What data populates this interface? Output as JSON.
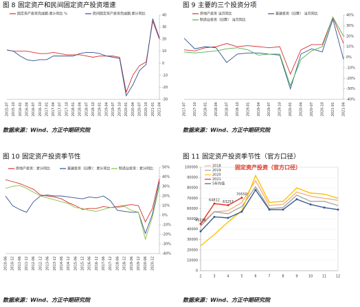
{
  "chart_data": [
    {
      "type": "line",
      "figure": "图 8",
      "title": "固定资产和民间固定资产投资增速",
      "source": "数据来源：Wind、方正中期研究院",
      "categories": [
        "2015-07",
        "2015-10",
        "2016-01",
        "2016-04",
        "2016-07",
        "2016-10",
        "2017-01",
        "2017-04",
        "2017-07",
        "2017-10",
        "2018-01",
        "2018-04",
        "2018-07",
        "2018-10",
        "2019-01",
        "2019-04",
        "2019-07",
        "2019-10",
        "2020-01",
        "2020-04",
        "2020-07",
        "2020-10",
        "2021-01",
        "2021-04"
      ],
      "series": [
        {
          "name": "固定资产投资完成额:累计同比 %",
          "color": "#d62d2d",
          "values": [
            11,
            10,
            10,
            10,
            9,
            8,
            8,
            9,
            8,
            7,
            7,
            7,
            6,
            5,
            6,
            6,
            6,
            5,
            -24,
            -10,
            -2,
            1,
            35,
            20
          ]
        },
        {
          "name": "民间固定资产投资完成额:累计同比",
          "color": "#2f4f8f",
          "values": [
            11,
            10,
            6,
            3,
            2,
            3,
            3,
            6,
            6,
            6,
            6,
            8,
            9,
            9,
            8,
            6,
            5,
            4,
            -27,
            -18,
            -6,
            -1,
            37,
            21
          ]
        }
      ],
      "ylim": [
        -30,
        40
      ],
      "yticks": [
        40,
        30,
        20,
        10,
        0,
        -10,
        -20,
        -30
      ]
    },
    {
      "type": "line",
      "figure": "图 9",
      "title": "主要的三个投资分项",
      "source": "数据来源：Wind、方正中期研究院",
      "categories": [
        "2017-07",
        "2017-10",
        "2018-01",
        "2018-04",
        "2018-07",
        "2018-10",
        "2019-01",
        "2019-04",
        "2019-07",
        "2019-10",
        "2020-01",
        "2020-04",
        "2020-07",
        "2020-10",
        "2021-01",
        "2021-04"
      ],
      "series": [
        {
          "name": "房地产投资 当月同比",
          "color": "#d62d2d",
          "values": [
            7,
            6,
            9,
            10,
            13,
            10,
            11,
            10,
            9,
            10,
            -16,
            7,
            12,
            12,
            38,
            13
          ]
        },
        {
          "name": "基建投资（旧算） 当月同比",
          "color": "#2f4f8f",
          "values": [
            18,
            8,
            10,
            9,
            -5,
            3,
            4,
            4,
            3,
            2,
            -30,
            3,
            8,
            5,
            36,
            -2
          ]
        },
        {
          "name": "制造业投资（旧算） 当月同比",
          "color": "#4caf50",
          "values": [
            5,
            4,
            5,
            6,
            8,
            9,
            7,
            2,
            3,
            3,
            -27,
            -2,
            6,
            10,
            38,
            20
          ]
        }
      ],
      "ylim": [
        -40,
        40
      ],
      "yticks": [
        {
          "value": 40,
          "label": "40%"
        },
        {
          "value": 30,
          "label": "30%"
        },
        {
          "value": 20,
          "label": "20%"
        },
        {
          "value": 10,
          "label": "10%"
        },
        {
          "value": 0,
          "label": "0%"
        },
        {
          "value": -10,
          "label": "-10%"
        },
        {
          "value": -20,
          "label": "-20%"
        },
        {
          "value": -30,
          "label": "-30%"
        },
        {
          "value": -40,
          "label": "-40%"
        }
      ]
    },
    {
      "type": "line",
      "figure": "图 10",
      "title": "固定资产投资季节性",
      "source": "数据来源：Wind、方正中期研究院",
      "categories": [
        "2010-06",
        "2010-12",
        "2011-06",
        "2011-12",
        "2012-06",
        "2012-12",
        "2013-06",
        "2013-12",
        "2014-06",
        "2014-12",
        "2015-06",
        "2015-12",
        "2016-06",
        "2016-12",
        "2017-06",
        "2017-12",
        "2018-06",
        "2018-12",
        "2019-06",
        "2019-12",
        "2020-06",
        "2020-12",
        null
      ],
      "series": [
        {
          "name": "房地产投资：累计同比",
          "color": "#d62d2d",
          "values": [
            37,
            35,
            33,
            30,
            27,
            21,
            20,
            19,
            17,
            13,
            10,
            6,
            7,
            7,
            9,
            8,
            9,
            10,
            11,
            10,
            -7,
            7,
            38
          ]
        },
        {
          "name": "基建投资（旧算）：累计同比",
          "color": "#2f4f8f",
          "values": [
            20,
            10,
            6,
            3,
            14,
            20,
            21,
            20,
            20,
            19,
            18,
            17,
            19,
            18,
            20,
            15,
            5,
            4,
            3,
            3,
            -19,
            1,
            35
          ]
        },
        {
          "name": "制造业投资：累计同比",
          "color": "#8bbf3f",
          "values": [
            28,
            30,
            31,
            28,
            24,
            20,
            18,
            16,
            14,
            12,
            8,
            7,
            5,
            4,
            6,
            8,
            8,
            9,
            5,
            3,
            -25,
            -2,
            30
          ]
        }
      ],
      "ylim": [
        -40,
        50
      ],
      "yticks": [
        {
          "value": 50,
          "label": "50%"
        },
        {
          "value": 40,
          "label": "40%"
        },
        {
          "value": 30,
          "label": "30%"
        },
        {
          "value": 20,
          "label": "20%"
        },
        {
          "value": 10,
          "label": "10%"
        },
        {
          "value": 0,
          "label": "0%"
        },
        {
          "value": -10,
          "label": "-10%"
        },
        {
          "value": -20,
          "label": "-20%"
        },
        {
          "value": -30,
          "label": "-30%"
        },
        {
          "value": -40,
          "label": "-40%"
        }
      ]
    },
    {
      "type": "line",
      "figure": "图 11",
      "title": "固定资产投资季节性（官方口径）",
      "source": "数据来源：Wind、方正中期研究院",
      "annotation": "固定资产投资（官方口径）",
      "categories": [
        "2",
        "3",
        "4",
        "5",
        "6",
        "7",
        "8",
        "9",
        "10",
        "11",
        "12"
      ],
      "series": [
        {
          "name": "2018",
          "color": "#f4b183",
          "values": [
            45000,
            57000,
            58000,
            66000,
            87000,
            63000,
            64000,
            76000,
            72000,
            70000,
            68000
          ]
        },
        {
          "name": "2019",
          "color": "#a5a5a5",
          "values": [
            43000,
            57000,
            55000,
            62000,
            81000,
            60000,
            61000,
            73000,
            67000,
            67000,
            63000
          ]
        },
        {
          "name": "2020",
          "color": "#ffc000",
          "values": [
            24000,
            35000,
            47000,
            58000,
            92000,
            66000,
            67000,
            80000,
            75000,
            74000,
            70000
          ]
        },
        {
          "name": "2021",
          "color": "#e0301e",
          "marker": true,
          "data_labels": true,
          "values": [
            45236,
            64812,
            63257,
            70550,
            null,
            null,
            null,
            null,
            null,
            null,
            null
          ]
        },
        {
          "name": "5年均值",
          "color": "#3b5b8f",
          "marker": true,
          "values": [
            38000,
            52000,
            51000,
            57000,
            78000,
            59000,
            59000,
            69000,
            64000,
            61000,
            59000
          ]
        }
      ],
      "ylim": [
        0,
        100000
      ],
      "yticks": [
        0,
        10000,
        20000,
        30000,
        40000,
        50000,
        60000,
        70000,
        80000,
        90000,
        100000
      ]
    }
  ]
}
